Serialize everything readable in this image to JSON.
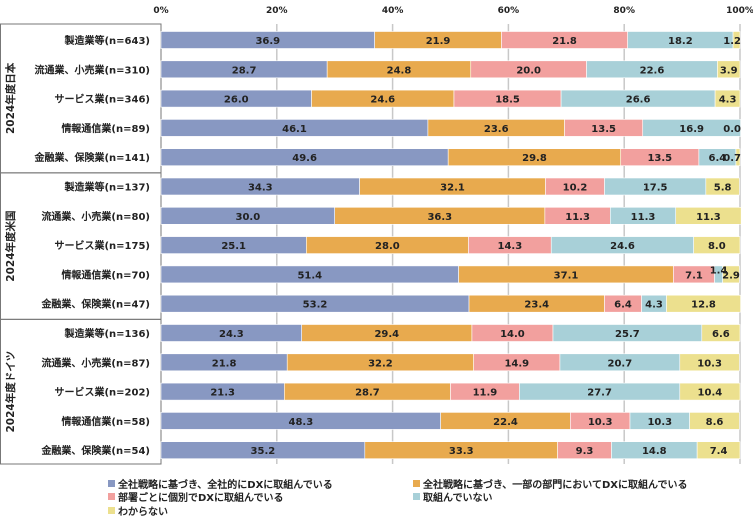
{
  "chart_data": {
    "type": "bar",
    "orientation": "horizontal",
    "stacked": true,
    "title": "",
    "xlabel": "",
    "ylabel": "",
    "xlim": [
      0,
      100
    ],
    "x_ticks": [
      "0%",
      "20%",
      "40%",
      "60%",
      "80%",
      "100%"
    ],
    "grid": true,
    "legend_position": "bottom",
    "groups": [
      {
        "label": "2024年度日本",
        "categories": [
          "製造業等(n=643)",
          "流通業、小売業(n=310)",
          "サービス業(n=346)",
          "情報通信業(n=89)",
          "金融業、保険業(n=141)"
        ]
      },
      {
        "label": "2024年度米国",
        "categories": [
          "製造業等(n=137)",
          "流通業、小売業(n=80)",
          "サービス業(n=175)",
          "情報通信業(n=70)",
          "金融業、保険業(n=47)"
        ]
      },
      {
        "label": "2024年度ドイツ",
        "categories": [
          "製造業等(n=136)",
          "流通業、小売業(n=87)",
          "サービス業(n=202)",
          "情報通信業(n=58)",
          "金融業、保険業(n=54)"
        ]
      }
    ],
    "series": [
      {
        "name": "全社戦略に基づき、全社的にDXに取組んでいる",
        "color": "#8898c2",
        "values": [
          36.9,
          28.7,
          26.0,
          46.1,
          49.6,
          34.3,
          30.0,
          25.1,
          51.4,
          53.2,
          24.3,
          21.8,
          21.3,
          48.3,
          35.2
        ]
      },
      {
        "name": "全社戦略に基づき、一部の部門においてDXに取組んでいる",
        "color": "#e8aa4e",
        "values": [
          21.9,
          24.8,
          24.6,
          23.6,
          29.8,
          32.1,
          36.3,
          28.0,
          37.1,
          23.4,
          29.4,
          32.2,
          28.7,
          22.4,
          33.3
        ]
      },
      {
        "name": "部署ごとに個別でDXに取組んでいる",
        "color": "#f2a09e",
        "values": [
          21.8,
          20.0,
          18.5,
          13.5,
          13.5,
          10.2,
          11.3,
          14.3,
          7.1,
          6.4,
          14.0,
          14.9,
          11.9,
          10.3,
          9.3
        ]
      },
      {
        "name": "取組んでいない",
        "color": "#a8d0d8",
        "values": [
          18.2,
          22.6,
          26.6,
          16.9,
          6.4,
          17.5,
          11.3,
          24.6,
          1.4,
          4.3,
          25.7,
          20.7,
          27.7,
          10.3,
          14.8
        ]
      },
      {
        "name": "わからない",
        "color": "#ece08e",
        "values": [
          1.2,
          3.9,
          4.3,
          0.0,
          0.7,
          5.8,
          11.3,
          8.0,
          2.9,
          12.8,
          6.6,
          10.3,
          10.4,
          8.6,
          7.4
        ]
      }
    ]
  }
}
